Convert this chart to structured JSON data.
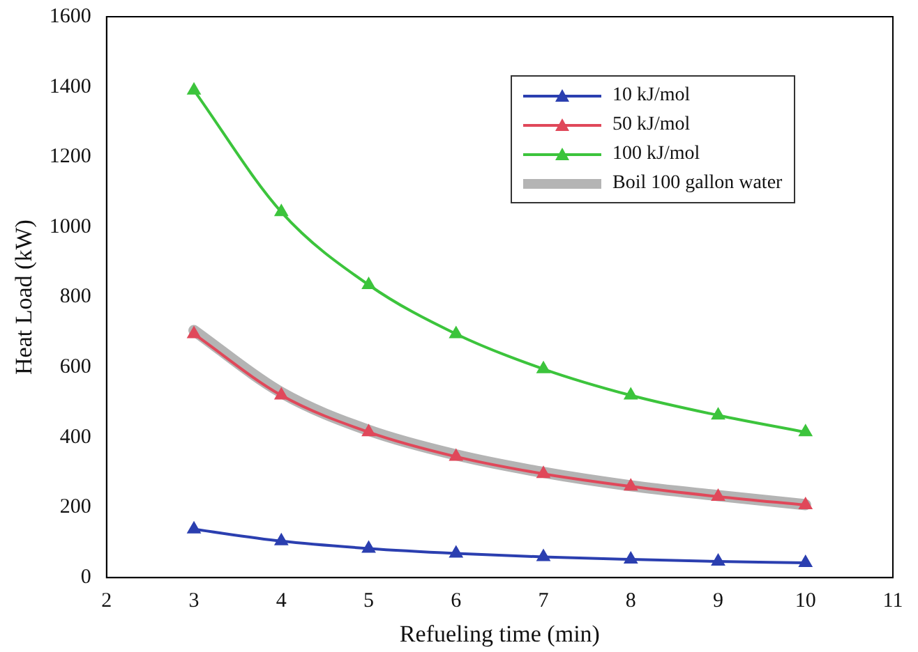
{
  "chart_data": {
    "type": "line",
    "xlabel": "Refueling time (min)",
    "ylabel": "Heat Load (kW)",
    "x": [
      3,
      4,
      5,
      6,
      7,
      8,
      9,
      10
    ],
    "xlim": [
      2,
      11
    ],
    "xticks": [
      2,
      3,
      4,
      5,
      6,
      7,
      8,
      9,
      10,
      11
    ],
    "ylim": [
      0,
      1600
    ],
    "yticks": [
      0,
      200,
      400,
      600,
      800,
      1000,
      1200,
      1400,
      1600
    ],
    "grid": false,
    "legend": "top right",
    "marker": "triangle",
    "line_style": "solid",
    "series": [
      {
        "name": "10 kJ/mol",
        "color": "#2b3fb0",
        "values": [
          138,
          104,
          83,
          69,
          59,
          52,
          46,
          42
        ]
      },
      {
        "name": "50 kJ/mol",
        "color": "#e0485a",
        "values": [
          695,
          520,
          415,
          345,
          296,
          260,
          231,
          207
        ]
      },
      {
        "name": "100 kJ/mol",
        "color": "#3cc43c",
        "values": [
          1390,
          1043,
          835,
          695,
          595,
          520,
          463,
          415
        ]
      },
      {
        "name": "Boil 100 gallon water",
        "color": "#b4b4b4",
        "marker": "none",
        "values": [
          705,
          528,
          420,
          350,
          300,
          262,
          234,
          208
        ]
      }
    ]
  }
}
